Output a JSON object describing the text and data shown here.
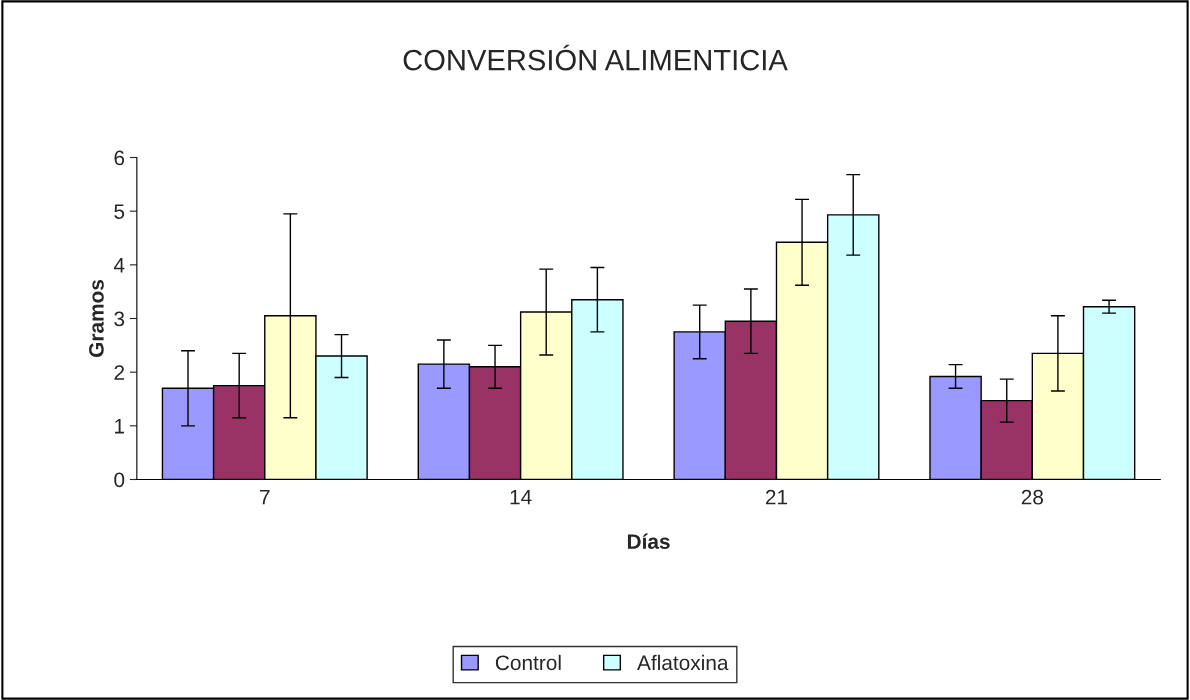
{
  "chart_data": {
    "type": "bar",
    "title": "CONVERSIÓN ALIMENTICIA",
    "xlabel": "Días",
    "ylabel": "Gramos",
    "categories": [
      "7",
      "14",
      "21",
      "28"
    ],
    "series": [
      {
        "name": "Control",
        "color": "#9999ff",
        "values": [
          1.7,
          2.15,
          2.75,
          1.92
        ],
        "errors": [
          0.7,
          0.45,
          0.5,
          0.22
        ]
      },
      {
        "color": "#993366",
        "values": [
          1.75,
          2.1,
          2.95,
          1.47
        ],
        "errors": [
          0.6,
          0.4,
          0.6,
          0.4
        ]
      },
      {
        "color": "#ffffcc",
        "values": [
          3.05,
          3.12,
          4.42,
          2.35
        ],
        "errors": [
          1.9,
          0.8,
          0.8,
          0.7
        ]
      },
      {
        "name": "Aflatoxina",
        "color": "#ccffff",
        "values": [
          2.3,
          3.35,
          4.93,
          3.22
        ],
        "errors": [
          0.4,
          0.6,
          0.75,
          0.12
        ]
      }
    ],
    "ylim": [
      0,
      6
    ],
    "yticks": [
      0,
      1,
      2,
      3,
      4,
      5,
      6
    ],
    "grid": false,
    "legend": "bottom"
  }
}
